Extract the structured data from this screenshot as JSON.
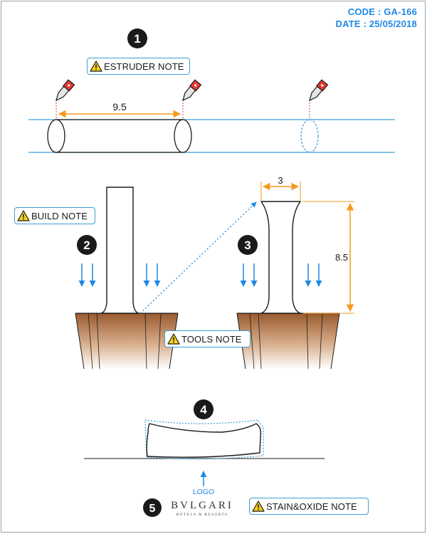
{
  "header": {
    "code": "CODE : GA-166",
    "date": "DATE : 25/05/2018"
  },
  "notes": {
    "estruder": "ESTRUDER NOTE",
    "build": "BUILD NOTE",
    "tools": "TOOLS NOTE",
    "stain": "STAIN&OXIDE NOTE"
  },
  "steps": [
    "1",
    "2",
    "3",
    "4",
    "5"
  ],
  "dimensions": {
    "cut_length": "9.5",
    "top_width": "3",
    "height": "8.5"
  },
  "logo": {
    "label": "LOGO",
    "brand": "BVLGARI",
    "tagline": "HOTELS & RESORTS"
  },
  "colors": {
    "accent": "#1e88e5",
    "dimension": "#f39a1e",
    "soil": "#9a5a2e",
    "warning": "#f7d117"
  }
}
